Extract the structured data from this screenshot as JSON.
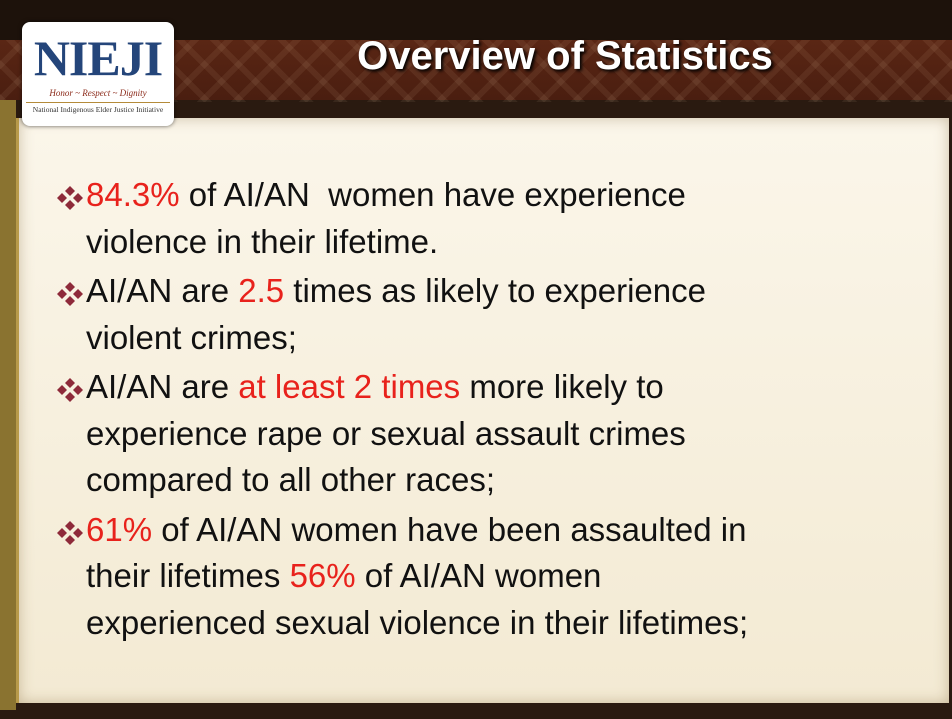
{
  "header": {
    "logo": {
      "mark": "NIEJI",
      "motto": "Honor ~ Respect ~ Dignity",
      "name": "National Indigenous Elder Justice Initiative"
    },
    "title": "Overview of Statistics"
  },
  "bullets": [
    {
      "lines": [
        [
          {
            "text": "84.3%",
            "color": "#e8221c"
          },
          {
            "text": " of AI/AN  women have experience"
          }
        ],
        [
          {
            "text": "violence in their lifetime."
          }
        ]
      ]
    },
    {
      "lines": [
        [
          {
            "text": "AI/AN are "
          },
          {
            "text": "2.5",
            "color": "#e8221c"
          },
          {
            "text": " times as likely to experience"
          }
        ],
        [
          {
            "text": "violent crimes;"
          }
        ]
      ]
    },
    {
      "lines": [
        [
          {
            "text": "AI/AN are "
          },
          {
            "text": "at least 2 times",
            "color": "#e8221c"
          },
          {
            "text": " more likely to"
          }
        ],
        [
          {
            "text": "experience rape or sexual assault crimes"
          }
        ],
        [
          {
            "text": "compared to all other races;"
          }
        ]
      ]
    },
    {
      "lines": [
        [
          {
            "text": "61%",
            "color": "#e8221c"
          },
          {
            "text": " of AI/AN women have been assaulted in"
          }
        ],
        [
          {
            "text": "their lifetimes "
          },
          {
            "text": "56%",
            "color": "#e8221c"
          },
          {
            "text": " of AI/AN women"
          }
        ],
        [
          {
            "text": "experienced sexual violence in their lifetimes;"
          }
        ]
      ]
    }
  ]
}
